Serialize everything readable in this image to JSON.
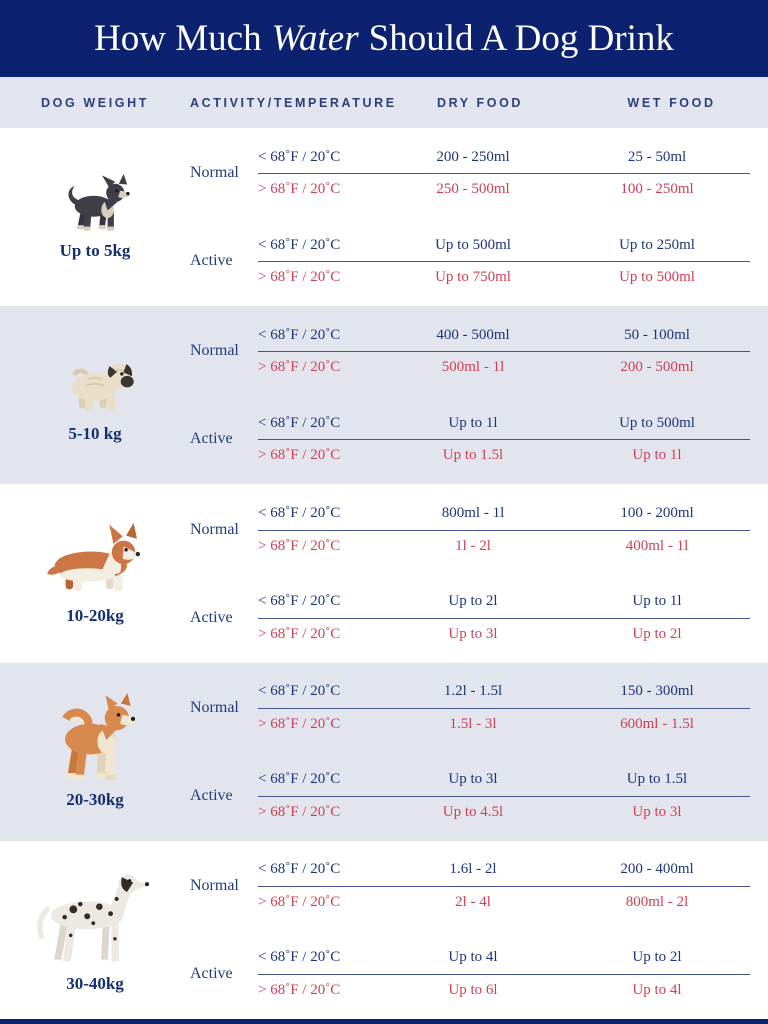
{
  "title": {
    "text_before": "How Much",
    "emphasis": "Water",
    "text_after": "Should A Dog Drink"
  },
  "column_headers": [
    "DOG WEIGHT",
    "ACTIVITY/TEMPERATURE",
    "DRY FOOD",
    "WET FOOD"
  ],
  "colors": {
    "header_navy": "#0c2170",
    "band_lavender": "#e3e5ee",
    "text_navy": "#1e3479",
    "text_red": "#ce4055"
  },
  "sections": [
    {
      "weight": "Up to 5kg",
      "dog_icon": "chihuahua-icon",
      "groups": [
        {
          "activity": "Normal",
          "rows": [
            {
              "temperature": "< 68˚F / 20˚C",
              "dry_food": "200 - 250ml",
              "wet_food": "25 - 50ml",
              "tone": "cool"
            },
            {
              "temperature": "> 68˚F / 20˚C",
              "dry_food": "250 - 500ml",
              "wet_food": "100 - 250ml",
              "tone": "warm"
            }
          ]
        },
        {
          "activity": "Active",
          "rows": [
            {
              "temperature": "< 68˚F / 20˚C",
              "dry_food": "Up to 500ml",
              "wet_food": "Up to 250ml",
              "tone": "cool"
            },
            {
              "temperature": "> 68˚F / 20˚C",
              "dry_food": "Up to 750ml",
              "wet_food": "Up to 500ml",
              "tone": "warm"
            }
          ]
        }
      ]
    },
    {
      "weight": "5-10 kg",
      "dog_icon": "pug-icon",
      "groups": [
        {
          "activity": "Normal",
          "rows": [
            {
              "temperature": "< 68˚F / 20˚C",
              "dry_food": "400 - 500ml",
              "wet_food": "50 - 100ml",
              "tone": "cool"
            },
            {
              "temperature": "> 68˚F / 20˚C",
              "dry_food": "500ml - 1l",
              "wet_food": "200 - 500ml",
              "tone": "warm"
            }
          ]
        },
        {
          "activity": "Active",
          "rows": [
            {
              "temperature": "< 68˚F / 20˚C",
              "dry_food": "Up to 1l",
              "wet_food": "Up to 500ml",
              "tone": "cool"
            },
            {
              "temperature": "> 68˚F / 20˚C",
              "dry_food": "Up to 1.5l",
              "wet_food": "Up to 1l",
              "tone": "warm"
            }
          ]
        }
      ]
    },
    {
      "weight": "10-20kg",
      "dog_icon": "corgi-icon",
      "groups": [
        {
          "activity": "Normal",
          "rows": [
            {
              "temperature": "< 68˚F / 20˚C",
              "dry_food": "800ml - 1l",
              "wet_food": "100 - 200ml",
              "tone": "cool"
            },
            {
              "temperature": "> 68˚F / 20˚C",
              "dry_food": "1l - 2l",
              "wet_food": "400ml - 1l",
              "tone": "warm"
            }
          ]
        },
        {
          "activity": "Active",
          "rows": [
            {
              "temperature": "< 68˚F / 20˚C",
              "dry_food": "Up to 2l",
              "wet_food": "Up to 1l",
              "tone": "cool"
            },
            {
              "temperature": "> 68˚F / 20˚C",
              "dry_food": "Up to 3l",
              "wet_food": "Up to 2l",
              "tone": "warm"
            }
          ]
        }
      ]
    },
    {
      "weight": "20-30kg",
      "dog_icon": "akita-icon",
      "groups": [
        {
          "activity": "Normal",
          "rows": [
            {
              "temperature": "< 68˚F / 20˚C",
              "dry_food": "1.2l - 1.5l",
              "wet_food": "150 - 300ml",
              "tone": "cool"
            },
            {
              "temperature": "> 68˚F / 20˚C",
              "dry_food": "1.5l - 3l",
              "wet_food": "600ml - 1.5l",
              "tone": "warm"
            }
          ]
        },
        {
          "activity": "Active",
          "rows": [
            {
              "temperature": "< 68˚F / 20˚C",
              "dry_food": "Up to 3l",
              "wet_food": "Up to 1.5l",
              "tone": "cool"
            },
            {
              "temperature": "> 68˚F / 20˚C",
              "dry_food": "Up to 4.5l",
              "wet_food": "Up to 3l",
              "tone": "warm"
            }
          ]
        }
      ]
    },
    {
      "weight": "30-40kg",
      "dog_icon": "dalmatian-icon",
      "groups": [
        {
          "activity": "Normal",
          "rows": [
            {
              "temperature": "< 68˚F / 20˚C",
              "dry_food": "1.6l - 2l",
              "wet_food": "200 - 400ml",
              "tone": "cool"
            },
            {
              "temperature": "> 68˚F / 20˚C",
              "dry_food": "2l - 4l",
              "wet_food": "800ml - 2l",
              "tone": "warm"
            }
          ]
        },
        {
          "activity": "Active",
          "rows": [
            {
              "temperature": "< 68˚F / 20˚C",
              "dry_food": "Up to 4l",
              "wet_food": "Up to 2l",
              "tone": "cool"
            },
            {
              "temperature": "> 68˚F / 20˚C",
              "dry_food": "Up to 6l",
              "wet_food": "Up to 4l",
              "tone": "warm"
            }
          ]
        }
      ]
    }
  ],
  "chart_data": {
    "type": "table",
    "title": "How Much Water Should A Dog Drink",
    "columns": [
      "Dog Weight",
      "Activity",
      "Temperature",
      "Dry Food",
      "Wet Food"
    ],
    "rows": [
      [
        "Up to 5kg",
        "Normal",
        "< 68˚F / 20˚C",
        "200 - 250ml",
        "25 - 50ml"
      ],
      [
        "Up to 5kg",
        "Normal",
        "> 68˚F / 20˚C",
        "250 - 500ml",
        "100 - 250ml"
      ],
      [
        "Up to 5kg",
        "Active",
        "< 68˚F / 20˚C",
        "Up to 500ml",
        "Up to 250ml"
      ],
      [
        "Up to 5kg",
        "Active",
        "> 68˚F / 20˚C",
        "Up to 750ml",
        "Up to 500ml"
      ],
      [
        "5-10 kg",
        "Normal",
        "< 68˚F / 20˚C",
        "400 - 500ml",
        "50 - 100ml"
      ],
      [
        "5-10 kg",
        "Normal",
        "> 68˚F / 20˚C",
        "500ml - 1l",
        "200 - 500ml"
      ],
      [
        "5-10 kg",
        "Active",
        "< 68˚F / 20˚C",
        "Up to 1l",
        "Up to 500ml"
      ],
      [
        "5-10 kg",
        "Active",
        "> 68˚F / 20˚C",
        "Up to 1.5l",
        "Up to 1l"
      ],
      [
        "10-20kg",
        "Normal",
        "< 68˚F / 20˚C",
        "800ml - 1l",
        "100 - 200ml"
      ],
      [
        "10-20kg",
        "Normal",
        "> 68˚F / 20˚C",
        "1l - 2l",
        "400ml - 1l"
      ],
      [
        "10-20kg",
        "Active",
        "< 68˚F / 20˚C",
        "Up to 2l",
        "Up to 1l"
      ],
      [
        "10-20kg",
        "Active",
        "> 68˚F / 20˚C",
        "Up to 3l",
        "Up to 2l"
      ],
      [
        "20-30kg",
        "Normal",
        "< 68˚F / 20˚C",
        "1.2l - 1.5l",
        "150 - 300ml"
      ],
      [
        "20-30kg",
        "Normal",
        "> 68˚F / 20˚C",
        "1.5l - 3l",
        "600ml - 1.5l"
      ],
      [
        "20-30kg",
        "Active",
        "< 68˚F / 20˚C",
        "Up to 3l",
        "Up to 1.5l"
      ],
      [
        "20-30kg",
        "Active",
        "> 68˚F / 20˚C",
        "Up to 4.5l",
        "Up to 3l"
      ],
      [
        "30-40kg",
        "Normal",
        "< 68˚F / 20˚C",
        "1.6l - 2l",
        "200 - 400ml"
      ],
      [
        "30-40kg",
        "Normal",
        "> 68˚F / 20˚C",
        "2l - 4l",
        "800ml - 2l"
      ],
      [
        "30-40kg",
        "Active",
        "< 68˚F / 20˚C",
        "Up to 4l",
        "Up to 2l"
      ],
      [
        "30-40kg",
        "Active",
        "> 68˚F / 20˚C",
        "Up to 6l",
        "Up to 4l"
      ]
    ]
  }
}
